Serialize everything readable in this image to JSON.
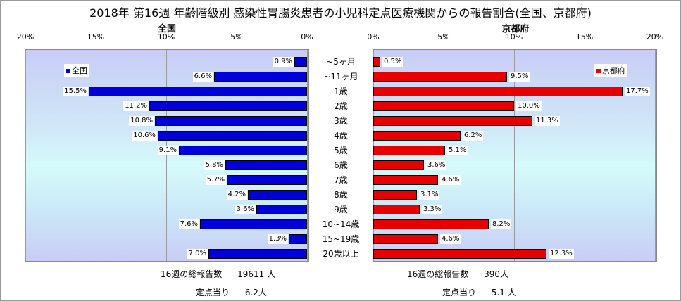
{
  "title": "2018年 第16週 年齢階級別 感染性胃腸炎患者の小児科定点医療機関からの報告割合(全国、京都府)",
  "chart_data": [
    {
      "type": "bar",
      "orientation": "horizontal",
      "title": "全国",
      "series": [
        {
          "name": "全国",
          "values": [
            0.9,
            6.6,
            15.5,
            11.2,
            10.8,
            10.6,
            9.1,
            5.8,
            5.7,
            4.2,
            3.6,
            7.6,
            1.3,
            7.0
          ]
        }
      ],
      "categories": [
        "~5ヶ月",
        "~11ヶ月",
        "1歳",
        "2歳",
        "3歳",
        "4歳",
        "5歳",
        "6歳",
        "7歳",
        "8歳",
        "9歳",
        "10~14歳",
        "15~19歳",
        "20歳以上"
      ],
      "value_labels": [
        "0.9%",
        "6.6%",
        "15.5%",
        "11.2%",
        "10.8%",
        "10.6%",
        "9.1%",
        "5.8%",
        "5.7%",
        "4.2%",
        "3.6%",
        "7.6%",
        "1.3%",
        "7.0%"
      ],
      "xlim": [
        0,
        20
      ],
      "x_reversed": true,
      "xticks": [
        "20%",
        "15%",
        "10%",
        "5%",
        "0%"
      ],
      "grid": true,
      "legend": "top-left",
      "color": "#0000d9"
    },
    {
      "type": "bar",
      "orientation": "horizontal",
      "title": "京都府",
      "series": [
        {
          "name": "京都府",
          "values": [
            0.5,
            9.5,
            17.7,
            10.0,
            11.3,
            6.2,
            5.1,
            3.6,
            4.6,
            3.1,
            3.3,
            8.2,
            4.6,
            12.3
          ]
        }
      ],
      "categories": [
        "~5ヶ月",
        "~11ヶ月",
        "1歳",
        "2歳",
        "3歳",
        "4歳",
        "5歳",
        "6歳",
        "7歳",
        "8歳",
        "9歳",
        "10~14歳",
        "15~19歳",
        "20歳以上"
      ],
      "value_labels": [
        "0.5%",
        "9.5%",
        "17.7%",
        "10.0%",
        "11.3%",
        "6.2%",
        "5.1%",
        "3.6%",
        "4.6%",
        "3.1%",
        "3.3%",
        "8.2%",
        "4.6%",
        "12.3%"
      ],
      "xlim": [
        0,
        20
      ],
      "xticks": [
        "0%",
        "5%",
        "10%",
        "15%",
        "20%"
      ],
      "grid": true,
      "legend": "top-right",
      "color": "#e60000"
    }
  ],
  "left_footer": {
    "total_label": "16週の総報告数",
    "total_value": "19611 人",
    "per_label": "定点当り",
    "per_value": "6.2人"
  },
  "right_footer": {
    "total_label": "16週の総報告数",
    "total_value": "390人",
    "per_label": "定点当り",
    "per_value": "5.1 人"
  }
}
